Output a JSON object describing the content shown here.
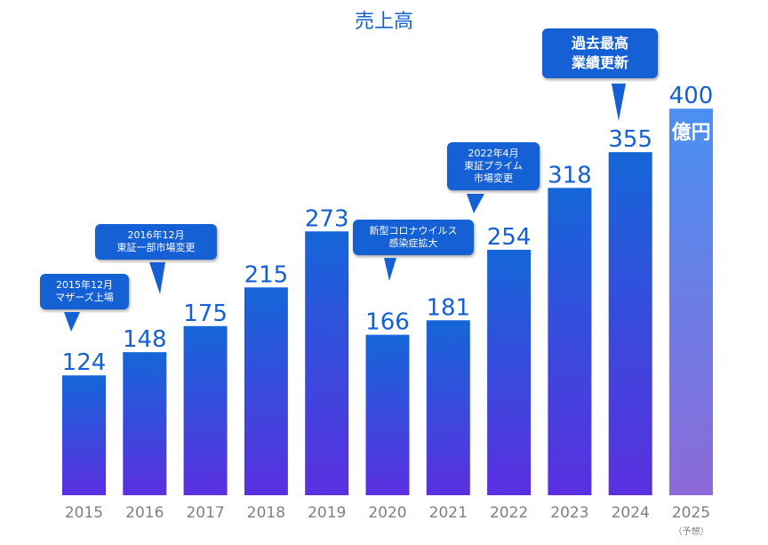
{
  "chart_data": {
    "type": "bar",
    "title": "売上高",
    "categories": [
      "2015",
      "2016",
      "2017",
      "2018",
      "2019",
      "2020",
      "2021",
      "2022",
      "2023",
      "2024",
      "2025"
    ],
    "values": [
      124,
      148,
      175,
      215,
      273,
      166,
      181,
      254,
      318,
      355,
      400
    ],
    "forecast_index": 10,
    "forecast_note": "（予想）",
    "unit_label": "億円",
    "ylim": [
      0,
      460
    ],
    "grid": false,
    "colors": {
      "bar_top": "#1566d8",
      "bar_bottom": "#5b2fe0",
      "forecast_top": "#4a90f2",
      "forecast_bottom": "#8c6ad8",
      "label": "#1560d4"
    }
  },
  "annotations": [
    {
      "lines": [
        "2015年12月",
        "マザーズ上場"
      ],
      "bar_index": 0
    },
    {
      "lines": [
        "2016年12月",
        "東証一部市場変更"
      ],
      "bar_index": 1
    },
    {
      "lines": [
        "新型コロナウイルス",
        "感染症拡大"
      ],
      "bar_index": 5
    },
    {
      "lines": [
        "2022年4月",
        "東証プライム",
        "市場変更"
      ],
      "bar_index": 7
    },
    {
      "lines": [
        "過去最高",
        "業績更新"
      ],
      "bar_index": 9
    }
  ]
}
